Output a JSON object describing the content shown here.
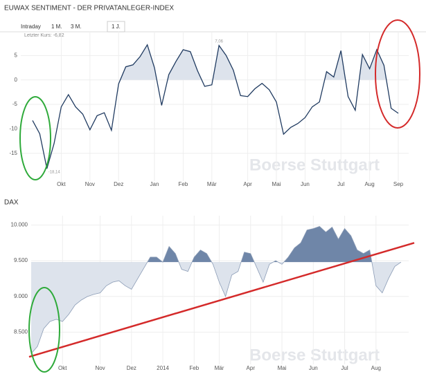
{
  "tabs": [
    "Intraday",
    "1 M.",
    "3 M.",
    "1 J."
  ],
  "chart_data": [
    {
      "type": "line",
      "title": "EUWAX SENTIMENT - DER PRIVATANLEGER-INDEX",
      "subtitle": "Letzter Kurs: -6,82",
      "categories": [
        null,
        null,
        null,
        null,
        "Okt",
        null,
        null,
        null,
        "Nov",
        null,
        null,
        null,
        "Dez",
        null,
        null,
        null,
        null,
        "Jan",
        null,
        null,
        null,
        "Feb",
        null,
        null,
        null,
        "Mär",
        null,
        null,
        null,
        null,
        "Apr",
        null,
        null,
        null,
        "Mai",
        null,
        null,
        null,
        "Jun",
        null,
        null,
        null,
        null,
        "Jul",
        null,
        null,
        null,
        "Aug",
        null,
        null,
        null,
        "Sep"
      ],
      "values": [
        -8.3,
        -11,
        -18.14,
        -13,
        -5.5,
        -3,
        -5.5,
        -7,
        -10.2,
        -7.3,
        -6.7,
        -10.3,
        -0.8,
        2.7,
        3.1,
        4.8,
        7.2,
        2.5,
        -5.2,
        1.1,
        3.8,
        6.2,
        5.8,
        1.9,
        -1.3,
        -1,
        7.06,
        5,
        2,
        -3.2,
        -3.4,
        -1.8,
        -0.7,
        -2,
        -4.5,
        -11.1,
        -9.7,
        -8.9,
        -7.7,
        -5.5,
        -4.5,
        1.7,
        0.6,
        6,
        -3.4,
        -6.2,
        5.2,
        2.3,
        6.2,
        3,
        -5.8,
        -6.82
      ],
      "color": "#1f3a60",
      "fill_above": "#dde3ec",
      "baseline": 0,
      "ylim": [
        -20.7,
        10
      ],
      "yticks": [
        5,
        0,
        -5,
        -10,
        -15
      ],
      "grid": true,
      "annotations": [
        {
          "text": "7,06",
          "value": 7.06
        },
        {
          "text": "-18,14",
          "value": -18.14
        }
      ],
      "watermark": "Boerse Stuttgart"
    },
    {
      "type": "line",
      "title": "DAX",
      "categories": [
        null,
        null,
        null,
        null,
        null,
        "Okt",
        null,
        null,
        null,
        null,
        null,
        "Nov",
        null,
        null,
        null,
        null,
        "Dez",
        null,
        null,
        null,
        null,
        "2014",
        null,
        null,
        null,
        null,
        "Feb",
        null,
        null,
        null,
        "Mär",
        null,
        null,
        null,
        null,
        "Apr",
        null,
        null,
        null,
        null,
        "Mai",
        null,
        null,
        null,
        null,
        "Jun",
        null,
        null,
        null,
        null,
        "Jul",
        null,
        null,
        null,
        null,
        "Aug",
        null,
        null,
        null,
        null
      ],
      "values": [
        8200,
        8300,
        8550,
        8650,
        8680,
        8650,
        8750,
        8880,
        8950,
        9000,
        9030,
        9050,
        9150,
        9200,
        9220,
        9150,
        9100,
        9250,
        9400,
        9550,
        9550,
        9480,
        9700,
        9600,
        9380,
        9350,
        9550,
        9650,
        9600,
        9450,
        9200,
        9000,
        9300,
        9350,
        9620,
        9600,
        9400,
        9200,
        9450,
        9500,
        9450,
        9550,
        9680,
        9750,
        9930,
        9950,
        9980,
        9900,
        9970,
        9800,
        9950,
        9850,
        9650,
        9600,
        9650,
        9150,
        9050,
        9250,
        9420,
        9480
      ],
      "color": "#8a9bb5",
      "fill_above": "#6f86a8",
      "fill_below": "#dde3ec",
      "baseline": 9480,
      "ylim": [
        8050,
        10130
      ],
      "yticks": [
        {
          "value": 10000,
          "label": "10.000"
        },
        {
          "value": 9500,
          "label": "9.500"
        },
        {
          "value": 9000,
          "label": "9.000"
        },
        {
          "value": 8500,
          "label": "8.500"
        }
      ],
      "grid": true,
      "trendline": {
        "color": "#d42a2a",
        "values": [
          8155,
          9750
        ]
      },
      "watermark": "Boerse Stuttgart"
    }
  ]
}
